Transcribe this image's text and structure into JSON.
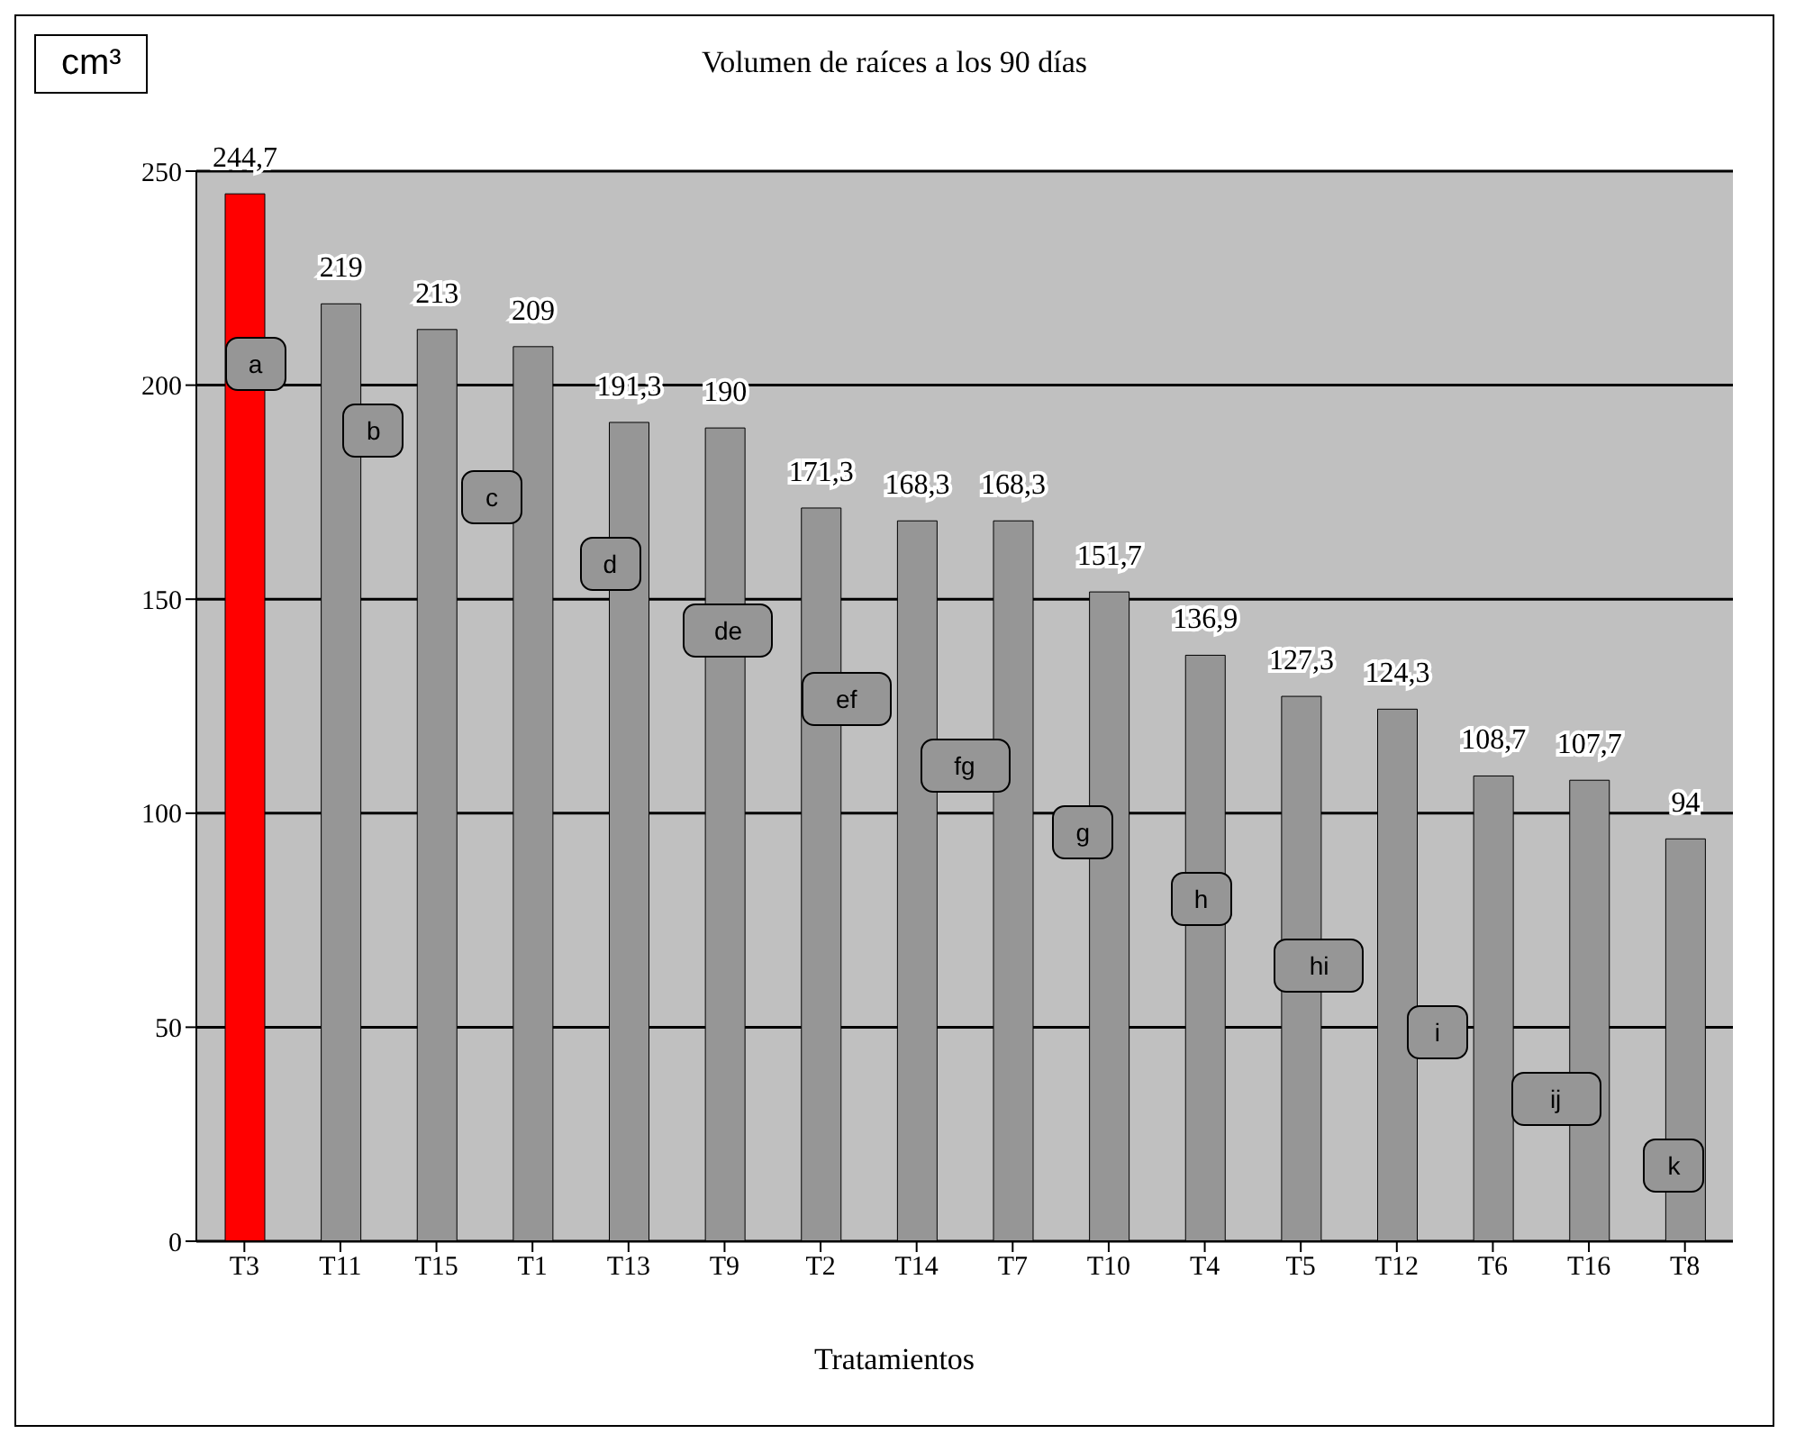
{
  "chart_data": {
    "type": "bar",
    "title": "Volumen de raíces a los 90 días",
    "xlabel": "Tratamientos",
    "ylabel": "cm³",
    "categories": [
      "T3",
      "T11",
      "T15",
      "T1",
      "T13",
      "T9",
      "T2",
      "T14",
      "T7",
      "T10",
      "T4",
      "T5",
      "T12",
      "T6",
      "T16",
      "T8"
    ],
    "values": [
      244.7,
      219,
      213,
      209,
      191.3,
      190,
      171.3,
      168.3,
      168.3,
      151.7,
      136.9,
      127.3,
      124.3,
      108.7,
      107.7,
      94
    ],
    "value_labels": [
      "244,7",
      "219",
      "213",
      "209",
      "191,3",
      "190",
      "171,3",
      "168,3",
      "168,3",
      "151,7",
      "136,9",
      "127,3",
      "124,3",
      "108,7",
      "107,7",
      "94"
    ],
    "colors": [
      "#ff0000",
      "#969696",
      "#969696",
      "#969696",
      "#969696",
      "#969696",
      "#969696",
      "#969696",
      "#969696",
      "#969696",
      "#969696",
      "#969696",
      "#969696",
      "#969696",
      "#969696",
      "#969696"
    ],
    "ylim": [
      0,
      250
    ],
    "yticks": [
      0,
      50,
      100,
      150,
      200,
      250
    ],
    "grid": "y",
    "legend": false,
    "annotations": [
      "a",
      "b",
      "c",
      "d",
      "de",
      "ef",
      "fg",
      "g",
      "h",
      "hi",
      "i",
      "ij",
      "k"
    ]
  }
}
